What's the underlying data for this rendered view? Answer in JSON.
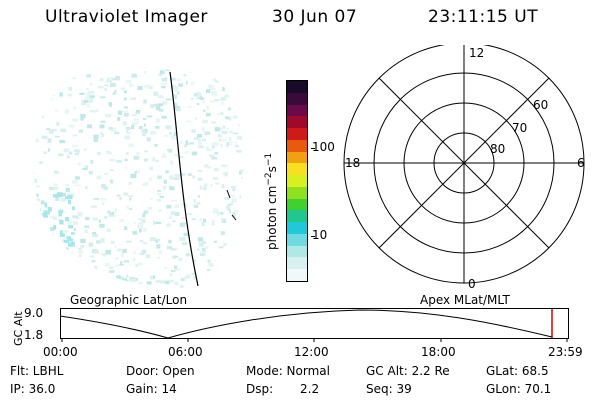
{
  "header": {
    "instrument": "Ultraviolet Imager",
    "date": "30 Jun 07",
    "time": "23:11:15 UT"
  },
  "colorbar": {
    "label": "photon cm",
    "label_exp1": "−2",
    "label_mid": "s",
    "label_exp2": "−1",
    "ticks": [
      "100",
      "10"
    ],
    "colors": [
      "#1a0a2a",
      "#3a0a3a",
      "#6a0a4a",
      "#a00a2a",
      "#d01a1a",
      "#e85a10",
      "#f0a010",
      "#f8e020",
      "#d8f020",
      "#90e020",
      "#40d030",
      "#20c890",
      "#20c8d8",
      "#70d8e0",
      "#b0e8e8",
      "#d8f0f0",
      "#f0f8f8"
    ]
  },
  "polar_plot": {
    "mlt_labels": {
      "top": "12",
      "left": "18",
      "right": "6",
      "bottom": "0"
    },
    "lat_labels": [
      "60",
      "70",
      "80"
    ]
  },
  "timeline": {
    "left_title": "Geographic Lat/Lon",
    "right_title": "Apex MLat/MLT",
    "ylabel": "GC Alt",
    "y_ticks": [
      "9.0",
      "1.8"
    ],
    "x_ticks": [
      "00:00",
      "06:00",
      "12:00",
      "18:00",
      "23:59"
    ],
    "marker_color": "#cc0000"
  },
  "footer": {
    "filter": "Flt: LBHL",
    "door": "Door: Open",
    "mode": "Mode: Normal",
    "gc_alt": "GC Alt: 2.2 Re",
    "glat": "GLat: 68.5",
    "ip": "IP: 36.0",
    "gain": "Gain: 14",
    "dsp": "Dsp:",
    "dsp_value": "2.2",
    "seq": "Seq: 39",
    "glon": "GLon: 70.1"
  }
}
